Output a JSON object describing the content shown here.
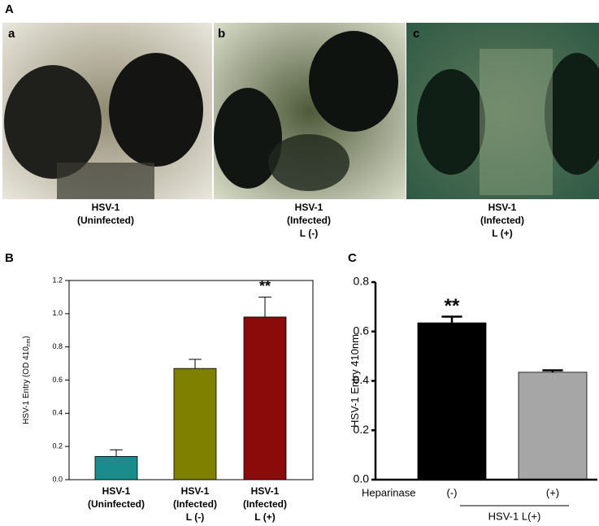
{
  "figure": {
    "panel_labels": [
      "A",
      "B",
      "C"
    ],
    "images": [
      {
        "label": "a",
        "caption": [
          "HSV-1",
          "(Uninfected)"
        ]
      },
      {
        "label": "b",
        "caption": [
          "HSV-1",
          "(Infected)",
          "L (-)"
        ]
      },
      {
        "label": "c",
        "caption": [
          "HSV-1",
          "(Infected)",
          "L (+)"
        ]
      }
    ]
  },
  "chart_data": [
    {
      "type": "bar",
      "y_label": [
        "HSV-1 Entry (OD 410",
        "nm",
        ")"
      ],
      "categories": [
        [
          "HSV-1",
          "(Uninfected)"
        ],
        [
          "HSV-1",
          "(Infected)",
          "L (-)"
        ],
        [
          "HSV-1",
          "(Infected)",
          "L (+)"
        ]
      ],
      "values": [
        0.14,
        0.67,
        0.98
      ],
      "errors": [
        0.04,
        0.055,
        0.12
      ],
      "colors": [
        "#1b8c8c",
        "#7f8000",
        "#8b0a0a"
      ],
      "ylim": [
        0,
        1.2
      ],
      "yticks": [
        {
          "value": 0,
          "label": "0.0"
        },
        {
          "value": 0.2,
          "label": "0.2"
        },
        {
          "value": 0.4,
          "label": "0.4"
        },
        {
          "value": 0.6,
          "label": "0.6"
        },
        {
          "value": 0.8,
          "label": "0.8"
        },
        {
          "value": 1,
          "label": "1.0"
        },
        {
          "value": 1.2,
          "label": "1.2"
        }
      ],
      "frame": true,
      "annotations": [
        {
          "text": "**",
          "index": 2
        }
      ]
    },
    {
      "type": "bar",
      "y_label": [
        "HSV-1 Entry 410nm"
      ],
      "x_label": "Heparinase",
      "group_label": "HSV-1 L(+)",
      "categories": [
        [
          "(-)"
        ],
        [
          "(+)"
        ]
      ],
      "values": [
        0.635,
        0.435
      ],
      "errors": [
        0.025,
        0.008
      ],
      "colors": [
        "#000000",
        "#a6a6a6"
      ],
      "ylim": [
        0,
        0.8
      ],
      "yticks": [
        {
          "value": 0,
          "label": "0.0"
        },
        {
          "value": 0.2,
          "label": "0.2"
        },
        {
          "value": 0.4,
          "label": "0.4"
        },
        {
          "value": 0.6,
          "label": "0.6"
        },
        {
          "value": 0.8,
          "label": "0.8"
        }
      ],
      "frame": false,
      "annotations": [
        {
          "text": "**",
          "index": 0
        }
      ]
    }
  ]
}
